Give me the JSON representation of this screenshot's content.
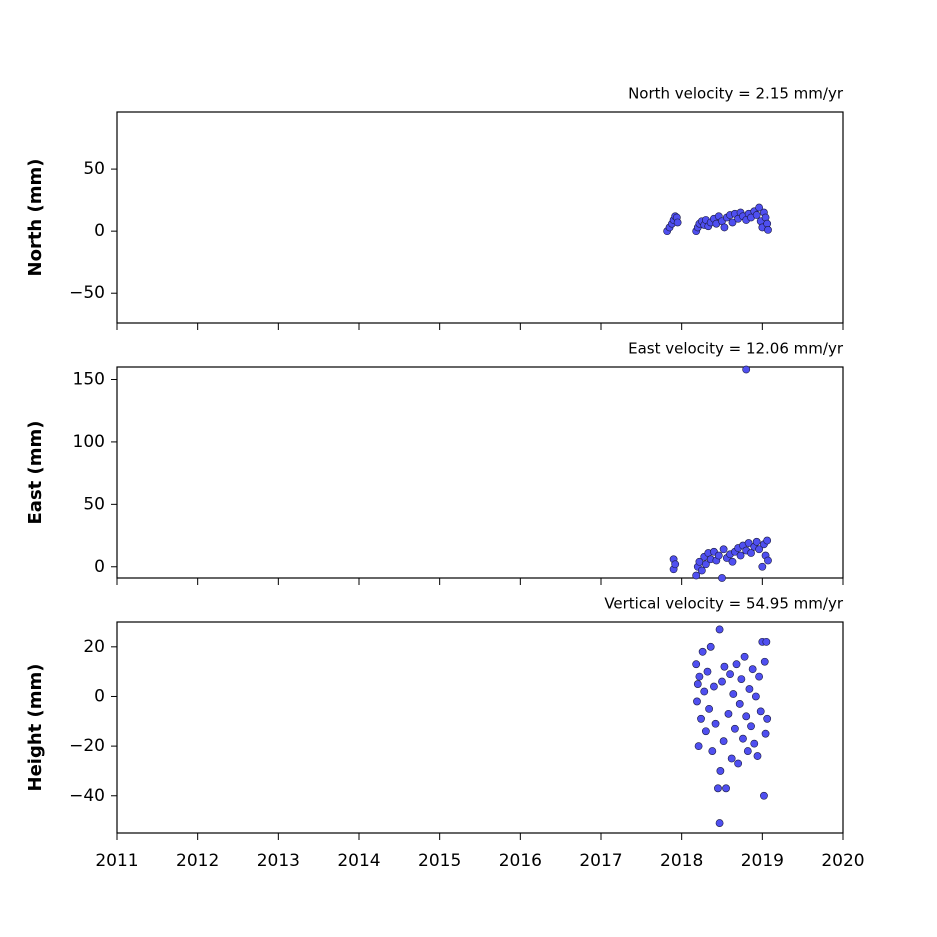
{
  "chart_data": [
    {
      "type": "scatter",
      "title": "North velocity = 2.15 mm/yr",
      "y_label": "North (mm)",
      "color": "#4f4ff0",
      "xlim": [
        2011,
        2020
      ],
      "xticks": [
        2011,
        2012,
        2013,
        2014,
        2015,
        2016,
        2017,
        2018,
        2019,
        2020
      ],
      "ylim": [
        -74,
        96
      ],
      "yticks": [
        {
          "value": -50,
          "label": "−50"
        },
        0,
        50
      ],
      "x": [
        2017.82,
        2017.85,
        2017.88,
        2017.9,
        2017.92,
        2017.94,
        2017.95,
        2018.18,
        2018.2,
        2018.22,
        2018.25,
        2018.28,
        2018.3,
        2018.33,
        2018.36,
        2018.4,
        2018.43,
        2018.46,
        2018.5,
        2018.53,
        2018.56,
        2018.6,
        2018.63,
        2018.66,
        2018.7,
        2018.73,
        2018.76,
        2018.8,
        2018.83,
        2018.86,
        2018.9,
        2018.93,
        2018.96,
        2018.98,
        2019.0,
        2019.02,
        2019.04,
        2019.06,
        2019.07
      ],
      "values": [
        0,
        3,
        6,
        9,
        12,
        11,
        7,
        0,
        3,
        6,
        8,
        5,
        9,
        4,
        7,
        10,
        6,
        12,
        8,
        3,
        11,
        13,
        7,
        14,
        10,
        15,
        12,
        9,
        14,
        11,
        16,
        13,
        19,
        8,
        3,
        15,
        11,
        6,
        1
      ]
    },
    {
      "type": "scatter",
      "title": "East velocity = 12.06 mm/yr",
      "y_label": "East (mm)",
      "color": "#4f4ff0",
      "xlim": [
        2011,
        2020
      ],
      "xticks": [
        2011,
        2012,
        2013,
        2014,
        2015,
        2016,
        2017,
        2018,
        2019,
        2020
      ],
      "ylim": [
        -9,
        160
      ],
      "yticks": [
        0,
        50,
        100,
        150
      ],
      "x": [
        2017.9,
        2017.9,
        2017.92,
        2018.18,
        2018.2,
        2018.22,
        2018.25,
        2018.28,
        2018.3,
        2018.33,
        2018.36,
        2018.4,
        2018.43,
        2018.46,
        2018.5,
        2018.52,
        2018.56,
        2018.6,
        2018.63,
        2018.66,
        2018.7,
        2018.73,
        2018.76,
        2018.8,
        2018.8,
        2018.83,
        2018.86,
        2018.9,
        2018.93,
        2018.96,
        2019.0,
        2019.02,
        2019.04,
        2019.06,
        2019.07
      ],
      "values": [
        6,
        -2,
        2,
        -7,
        0,
        4,
        -3,
        8,
        2,
        11,
        6,
        12,
        5,
        9,
        -9,
        14,
        7,
        10,
        4,
        12,
        15,
        9,
        17,
        13,
        158,
        19,
        11,
        16,
        20,
        14,
        0,
        18,
        9,
        21,
        5
      ]
    },
    {
      "type": "scatter",
      "title": "Vertical velocity = 54.95 mm/yr",
      "y_label": "Height (mm)",
      "color": "#4f4ff0",
      "xlim": [
        2011,
        2020
      ],
      "xticks": [
        2011,
        2012,
        2013,
        2014,
        2015,
        2016,
        2017,
        2018,
        2019,
        2020
      ],
      "ylim": [
        -55,
        30
      ],
      "yticks": [
        {
          "value": -40,
          "label": "−40"
        },
        {
          "value": -20,
          "label": "−20"
        },
        0,
        20
      ],
      "x": [
        2018.18,
        2018.19,
        2018.2,
        2018.21,
        2018.22,
        2018.24,
        2018.26,
        2018.28,
        2018.3,
        2018.32,
        2018.34,
        2018.36,
        2018.38,
        2018.4,
        2018.42,
        2018.45,
        2018.47,
        2018.47,
        2018.48,
        2018.5,
        2018.52,
        2018.53,
        2018.55,
        2018.58,
        2018.6,
        2018.62,
        2018.64,
        2018.66,
        2018.68,
        2018.7,
        2018.72,
        2018.74,
        2018.76,
        2018.78,
        2018.8,
        2018.82,
        2018.84,
        2018.86,
        2018.88,
        2018.9,
        2018.92,
        2018.94,
        2018.96,
        2018.98,
        2019.0,
        2019.02,
        2019.03,
        2019.04,
        2019.05,
        2019.06
      ],
      "values": [
        13,
        -2,
        5,
        -20,
        8,
        -9,
        18,
        2,
        -14,
        10,
        -5,
        20,
        -22,
        4,
        -11,
        -37,
        27,
        -51,
        -30,
        6,
        -18,
        12,
        -37,
        -7,
        9,
        -25,
        1,
        -13,
        13,
        -27,
        -3,
        7,
        -17,
        16,
        -8,
        -22,
        3,
        -12,
        11,
        -19,
        0,
        -24,
        8,
        -6,
        22,
        -40,
        14,
        -15,
        22,
        -9
      ]
    }
  ]
}
